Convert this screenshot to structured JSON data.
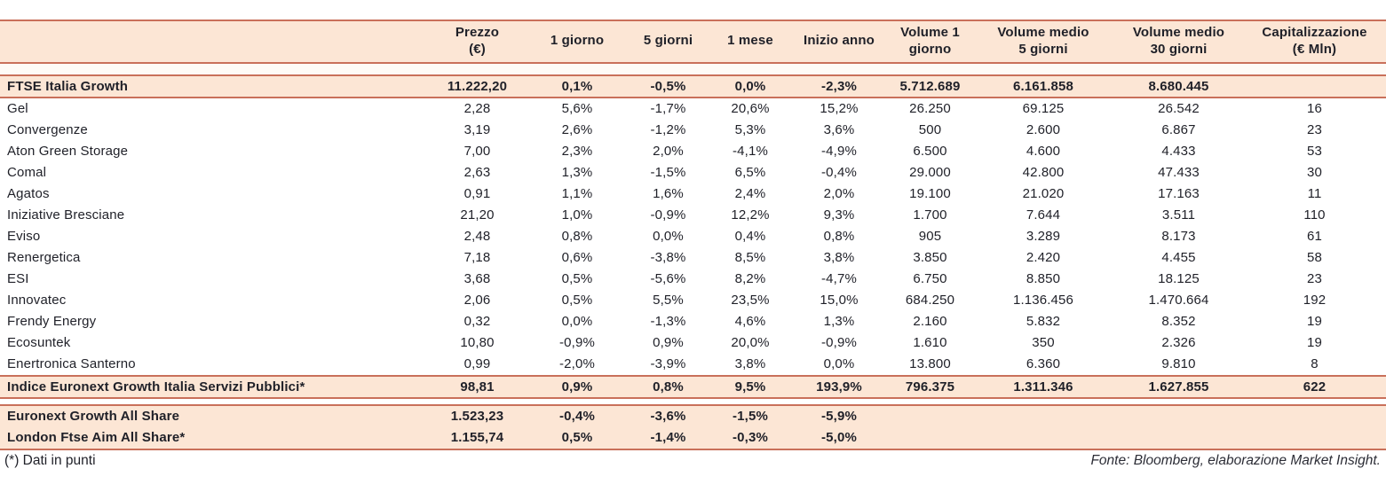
{
  "chart_data": {
    "type": "table",
    "columns": [
      "",
      "Prezzo\n(€)",
      "1 giorno",
      "5 giorni",
      "1 mese",
      "Inizio anno",
      "Volume 1\ngiorno",
      "Volume medio\n5 giorni",
      "Volume medio\n30 giorni",
      "Capitalizzazione\n(€ Mln)"
    ],
    "ftse_row": {
      "name": "FTSE Italia Growth",
      "values": [
        "11.222,20",
        "0,1%",
        "-0,5%",
        "0,0%",
        "-2,3%",
        "5.712.689",
        "6.161.858",
        "8.680.445",
        ""
      ]
    },
    "stocks": [
      {
        "name": "Gel",
        "values": [
          "2,28",
          "5,6%",
          "-1,7%",
          "20,6%",
          "15,2%",
          "26.250",
          "69.125",
          "26.542",
          "16"
        ]
      },
      {
        "name": "Convergenze",
        "values": [
          "3,19",
          "2,6%",
          "-1,2%",
          "5,3%",
          "3,6%",
          "500",
          "2.600",
          "6.867",
          "23"
        ]
      },
      {
        "name": "Aton Green Storage",
        "values": [
          "7,00",
          "2,3%",
          "2,0%",
          "-4,1%",
          "-4,9%",
          "6.500",
          "4.600",
          "4.433",
          "53"
        ]
      },
      {
        "name": "Comal",
        "values": [
          "2,63",
          "1,3%",
          "-1,5%",
          "6,5%",
          "-0,4%",
          "29.000",
          "42.800",
          "47.433",
          "30"
        ]
      },
      {
        "name": "Agatos",
        "values": [
          "0,91",
          "1,1%",
          "1,6%",
          "2,4%",
          "2,0%",
          "19.100",
          "21.020",
          "17.163",
          "11"
        ]
      },
      {
        "name": "Iniziative Bresciane",
        "values": [
          "21,20",
          "1,0%",
          "-0,9%",
          "12,2%",
          "9,3%",
          "1.700",
          "7.644",
          "3.511",
          "110"
        ]
      },
      {
        "name": "Eviso",
        "values": [
          "2,48",
          "0,8%",
          "0,0%",
          "0,4%",
          "0,8%",
          "905",
          "3.289",
          "8.173",
          "61"
        ]
      },
      {
        "name": "Renergetica",
        "values": [
          "7,18",
          "0,6%",
          "-3,8%",
          "8,5%",
          "3,8%",
          "3.850",
          "2.420",
          "4.455",
          "58"
        ]
      },
      {
        "name": "ESI",
        "values": [
          "3,68",
          "0,5%",
          "-5,6%",
          "8,2%",
          "-4,7%",
          "6.750",
          "8.850",
          "18.125",
          "23"
        ]
      },
      {
        "name": "Innovatec",
        "values": [
          "2,06",
          "0,5%",
          "5,5%",
          "23,5%",
          "15,0%",
          "684.250",
          "1.136.456",
          "1.470.664",
          "192"
        ]
      },
      {
        "name": "Frendy Energy",
        "values": [
          "0,32",
          "0,0%",
          "-1,3%",
          "4,6%",
          "1,3%",
          "2.160",
          "5.832",
          "8.352",
          "19"
        ]
      },
      {
        "name": "Ecosuntek",
        "values": [
          "10,80",
          "-0,9%",
          "0,9%",
          "20,0%",
          "-0,9%",
          "1.610",
          "350",
          "2.326",
          "19"
        ]
      },
      {
        "name": "Enertronica Santerno",
        "values": [
          "0,99",
          "-2,0%",
          "-3,9%",
          "3,8%",
          "0,0%",
          "13.800",
          "6.360",
          "9.810",
          "8"
        ]
      }
    ],
    "servizi_row": {
      "name": "Indice Euronext Growth Italia Servizi Pubblici*",
      "values": [
        "98,81",
        "0,9%",
        "0,8%",
        "9,5%",
        "193,9%",
        "796.375",
        "1.311.346",
        "1.627.855",
        "622"
      ]
    },
    "bottom_rows": [
      {
        "name": "Euronext Growth All Share",
        "values": [
          "1.523,23",
          "-0,4%",
          "-3,6%",
          "-1,5%",
          "-5,9%",
          "",
          "",
          "",
          ""
        ]
      },
      {
        "name": "London Ftse Aim All Share*",
        "values": [
          "1.155,74",
          "0,5%",
          "-1,4%",
          "-0,3%",
          "-5,0%",
          "",
          "",
          "",
          ""
        ]
      }
    ]
  },
  "footer": {
    "note": "(*) Dati in punti",
    "source": "Fonte: Bloomberg, elaborazione Market Insight."
  },
  "colors": {
    "accent_line": "#c9705a",
    "row_highlight": "#fce6d5",
    "text": "#1f2028"
  }
}
